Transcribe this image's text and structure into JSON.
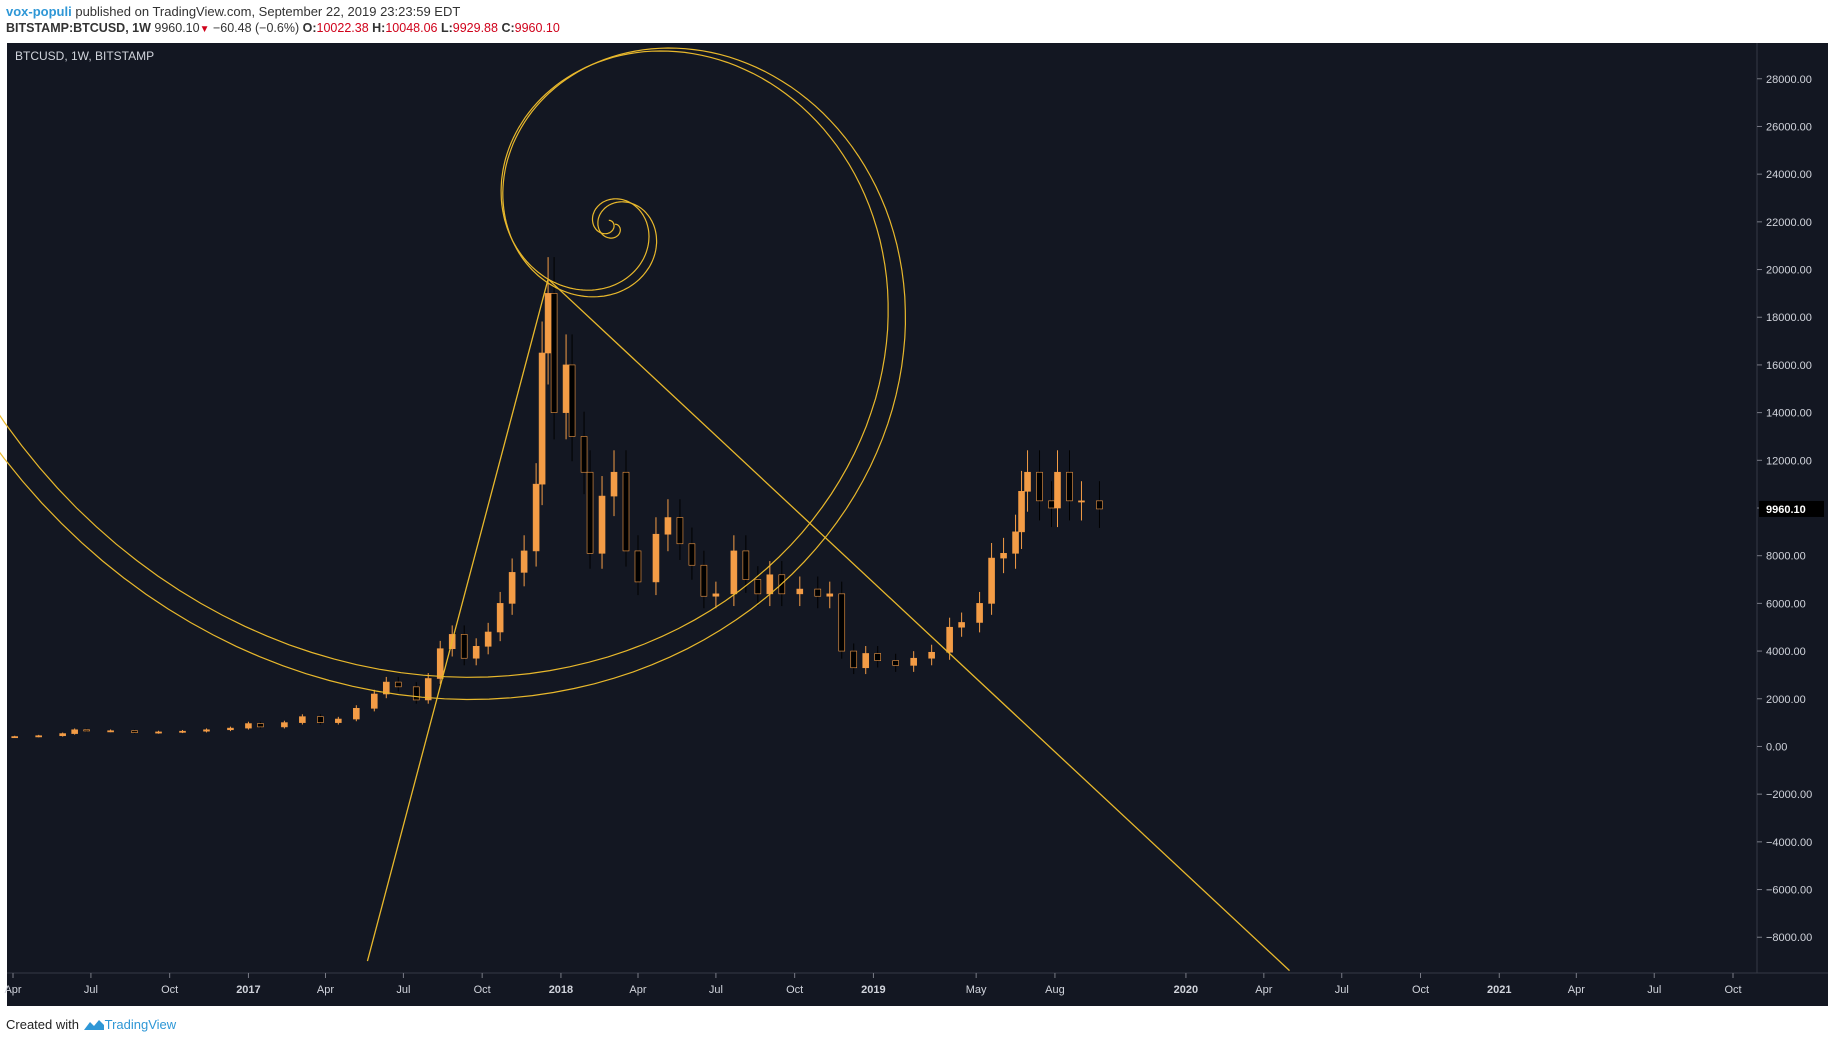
{
  "header": {
    "author": "vox-populi",
    "published": "published on TradingView.com, September 22, 2019 23:23:59 EDT",
    "symbol": "BITSTAMP:BTCUSD, 1W",
    "last": "9960.10",
    "change": "−60.48 (−0.6%)",
    "o_label": "O:",
    "o": "10022.38",
    "h_label": "H:",
    "h": "10048.06",
    "l_label": "L:",
    "l": "9929.88",
    "c_label": "C:",
    "c": "9960.10"
  },
  "footer": {
    "created_with": "Created with",
    "brand": "TradingView"
  },
  "colors": {
    "background": "#131722",
    "candle": "#f39c46",
    "drawing": "#e8b82c",
    "price_tag": "#000000"
  },
  "chart_data": {
    "type": "candlestick",
    "title": "BTCUSD, 1W, BITSTAMP",
    "ylim": [
      -9500,
      29500
    ],
    "y_ticks": [
      28000,
      26000,
      24000,
      22000,
      20000,
      18000,
      16000,
      14000,
      12000,
      10000,
      8000,
      6000,
      4000,
      2000,
      0,
      -2000,
      -4000,
      -6000,
      -8000
    ],
    "y_tick_labels": [
      "28000.00",
      "26000.00",
      "24000.00",
      "22000.00",
      "20000.00",
      "18000.00",
      "16000.00",
      "14000.00",
      "12000.00",
      "10000.00",
      "8000.00",
      "6000.00",
      "4000.00",
      "2000.00",
      "0.00",
      "−2000.00",
      "−4000.00",
      "−6000.00",
      "−8000.00"
    ],
    "last_price_label": "9960.10",
    "last_price": 9960.1,
    "x_ticks": [
      {
        "label": "Apr",
        "date": "2016-04-01"
      },
      {
        "label": "Jul",
        "date": "2016-07-01"
      },
      {
        "label": "Oct",
        "date": "2016-10-01"
      },
      {
        "label": "2017",
        "date": "2017-01-01"
      },
      {
        "label": "Apr",
        "date": "2017-04-01"
      },
      {
        "label": "Jul",
        "date": "2017-07-01"
      },
      {
        "label": "Oct",
        "date": "2017-10-01"
      },
      {
        "label": "2018",
        "date": "2018-01-01"
      },
      {
        "label": "Apr",
        "date": "2018-04-01"
      },
      {
        "label": "Jul",
        "date": "2018-07-01"
      },
      {
        "label": "Oct",
        "date": "2018-10-01"
      },
      {
        "label": "2019",
        "date": "2019-01-01"
      },
      {
        "label": "May",
        "date": "2019-05-01"
      },
      {
        "label": "Aug",
        "date": "2019-08-01"
      },
      {
        "label": "2020",
        "date": "2020-01-01"
      },
      {
        "label": "Apr",
        "date": "2020-04-01"
      },
      {
        "label": "Jul",
        "date": "2020-07-01"
      },
      {
        "label": "Oct",
        "date": "2020-10-01"
      },
      {
        "label": "2021",
        "date": "2021-01-01"
      },
      {
        "label": "Apr",
        "date": "2021-04-01"
      },
      {
        "label": "Jul",
        "date": "2021-07-01"
      },
      {
        "label": "Oct",
        "date": "2021-10-01"
      }
    ],
    "series": [
      {
        "name": "BTCUSD",
        "points": [
          [
            "2016-04-03",
            416
          ],
          [
            "2016-05-01",
            450
          ],
          [
            "2016-05-29",
            540
          ],
          [
            "2016-06-12",
            700
          ],
          [
            "2016-06-26",
            650
          ],
          [
            "2016-07-24",
            660
          ],
          [
            "2016-08-21",
            580
          ],
          [
            "2016-09-18",
            610
          ],
          [
            "2016-10-16",
            640
          ],
          [
            "2016-11-13",
            700
          ],
          [
            "2016-12-11",
            770
          ],
          [
            "2017-01-01",
            960
          ],
          [
            "2017-01-15",
            820
          ],
          [
            "2017-02-12",
            1000
          ],
          [
            "2017-03-05",
            1250
          ],
          [
            "2017-03-26",
            1000
          ],
          [
            "2017-04-16",
            1150
          ],
          [
            "2017-05-07",
            1600
          ],
          [
            "2017-05-28",
            2200
          ],
          [
            "2017-06-11",
            2700
          ],
          [
            "2017-06-25",
            2500
          ],
          [
            "2017-07-16",
            1950
          ],
          [
            "2017-07-30",
            2850
          ],
          [
            "2017-08-13",
            4100
          ],
          [
            "2017-08-27",
            4700
          ],
          [
            "2017-09-10",
            3700
          ],
          [
            "2017-09-24",
            4200
          ],
          [
            "2017-10-08",
            4800
          ],
          [
            "2017-10-22",
            6000
          ],
          [
            "2017-11-05",
            7300
          ],
          [
            "2017-11-19",
            8200
          ],
          [
            "2017-12-03",
            11000
          ],
          [
            "2017-12-10",
            16500
          ],
          [
            "2017-12-17",
            19000
          ],
          [
            "2017-12-24",
            14000
          ],
          [
            "2018-01-07",
            16000
          ],
          [
            "2018-01-14",
            13000
          ],
          [
            "2018-01-28",
            11500
          ],
          [
            "2018-02-04",
            8100
          ],
          [
            "2018-02-18",
            10500
          ],
          [
            "2018-03-04",
            11500
          ],
          [
            "2018-03-18",
            8200
          ],
          [
            "2018-04-01",
            6900
          ],
          [
            "2018-04-22",
            8900
          ],
          [
            "2018-05-06",
            9600
          ],
          [
            "2018-05-20",
            8500
          ],
          [
            "2018-06-03",
            7600
          ],
          [
            "2018-06-17",
            6300
          ],
          [
            "2018-07-01",
            6400
          ],
          [
            "2018-07-22",
            8200
          ],
          [
            "2018-08-05",
            7000
          ],
          [
            "2018-08-19",
            6400
          ],
          [
            "2018-09-02",
            7200
          ],
          [
            "2018-09-16",
            6400
          ],
          [
            "2018-10-07",
            6600
          ],
          [
            "2018-10-28",
            6300
          ],
          [
            "2018-11-11",
            6400
          ],
          [
            "2018-11-25",
            4000
          ],
          [
            "2018-12-09",
            3300
          ],
          [
            "2018-12-23",
            3900
          ],
          [
            "2019-01-06",
            3600
          ],
          [
            "2019-01-27",
            3400
          ],
          [
            "2019-02-17",
            3700
          ],
          [
            "2019-03-10",
            3950
          ],
          [
            "2019-03-31",
            5000
          ],
          [
            "2019-04-14",
            5200
          ],
          [
            "2019-05-05",
            6000
          ],
          [
            "2019-05-19",
            7900
          ],
          [
            "2019-06-02",
            8100
          ],
          [
            "2019-06-16",
            9000
          ],
          [
            "2019-06-23",
            10700
          ],
          [
            "2019-06-30",
            11500
          ],
          [
            "2019-07-14",
            10300
          ],
          [
            "2019-07-28",
            10000
          ],
          [
            "2019-08-04",
            11500
          ],
          [
            "2019-08-18",
            10300
          ],
          [
            "2019-09-01",
            10300
          ],
          [
            "2019-09-22",
            9960
          ]
        ]
      }
    ],
    "drawings": [
      {
        "type": "trend-line",
        "from": [
          "2017-05-20",
          -9000
        ],
        "to": [
          "2017-12-17",
          19600
        ]
      },
      {
        "type": "trend-line",
        "from": [
          "2017-12-17",
          19600
        ],
        "to": [
          "2020-05-01",
          -9400
        ]
      },
      {
        "type": "fibonacci-spiral",
        "passes_through": [
          [
            "2017-12-17",
            19600
          ],
          [
            "2019-03-24",
            4000
          ]
        ]
      }
    ]
  }
}
